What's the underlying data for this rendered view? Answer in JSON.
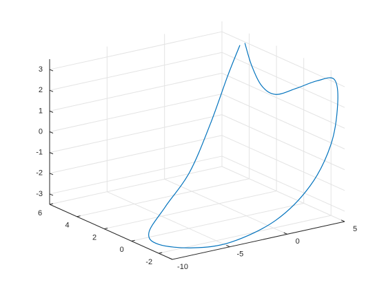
{
  "chart_data": {
    "type": "line3d",
    "x": [
      5,
      5,
      5,
      5,
      5,
      5,
      5,
      5,
      5,
      2.0,
      -1.0,
      -4.9,
      -8.2,
      -10,
      -10,
      -7.51,
      -3.99,
      -0.76,
      2.17,
      4.19
    ],
    "y": [
      4.32,
      3.82,
      3.06,
      2.05,
      0.54,
      -0.98,
      -2.24,
      -2.49,
      -1.99,
      -3,
      -3,
      -3,
      -3,
      -1.99,
      -1.28,
      -0.4,
      0.8,
      2.0,
      3.2,
      4.0
    ],
    "z": [
      2.95,
      2.01,
      1.24,
      1.14,
      1.88,
      2.69,
      3.13,
      2.04,
      -0.09,
      -1.41,
      -2.71,
      -3.29,
      -3.16,
      -3.07,
      -2.72,
      -2.02,
      -1.15,
      0.43,
      2.03,
      3.04
    ],
    "color": "#0072bd",
    "xlim": [
      -10,
      5
    ],
    "ylim": [
      -3,
      6
    ],
    "zlim": [
      -3.5,
      3.5
    ],
    "xticks": [
      -10,
      -5,
      0,
      5
    ],
    "yticks": [
      -2,
      0,
      2,
      4,
      6
    ],
    "zticks": [
      -3,
      -2,
      -1,
      0,
      1,
      2,
      3
    ],
    "grid": true
  }
}
